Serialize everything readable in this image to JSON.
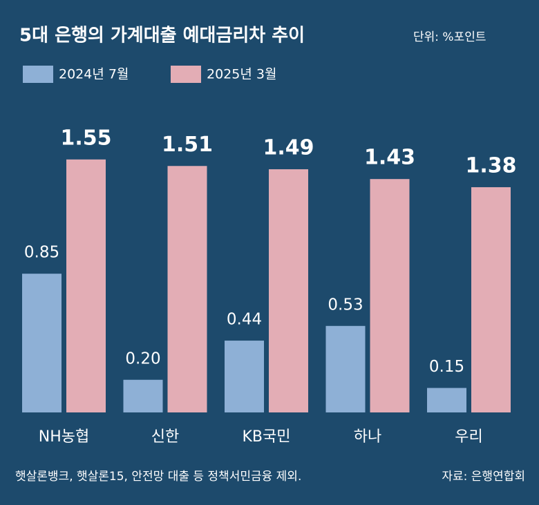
{
  "chart_data": {
    "type": "bar",
    "title": "5대 은행의 가계대출 예대금리차 추이",
    "subtitle": "단위: %포인트",
    "categories": [
      "NH농협",
      "신한",
      "KB국민",
      "하나",
      "우리"
    ],
    "series": [
      {
        "name": "2024년 7월",
        "color": "#8eb0d6",
        "values": [
          0.85,
          0.2,
          0.44,
          0.53,
          0.15
        ],
        "value_labels": [
          "0.85",
          "0.20",
          "0.44",
          "0.53",
          "0.15"
        ]
      },
      {
        "name": "2025년 3월",
        "color": "#e3adb5",
        "values": [
          1.55,
          1.51,
          1.49,
          1.43,
          1.38
        ],
        "value_labels": [
          "1.55",
          "1.51",
          "1.49",
          "1.43",
          "1.38"
        ]
      }
    ],
    "ylim": [
      0,
      1.6
    ],
    "footnote": "햇살론뱅크, 햇살론15, 안전망 대출 등 정책서민금융 제외.",
    "source": "자료: 은행연합회"
  }
}
